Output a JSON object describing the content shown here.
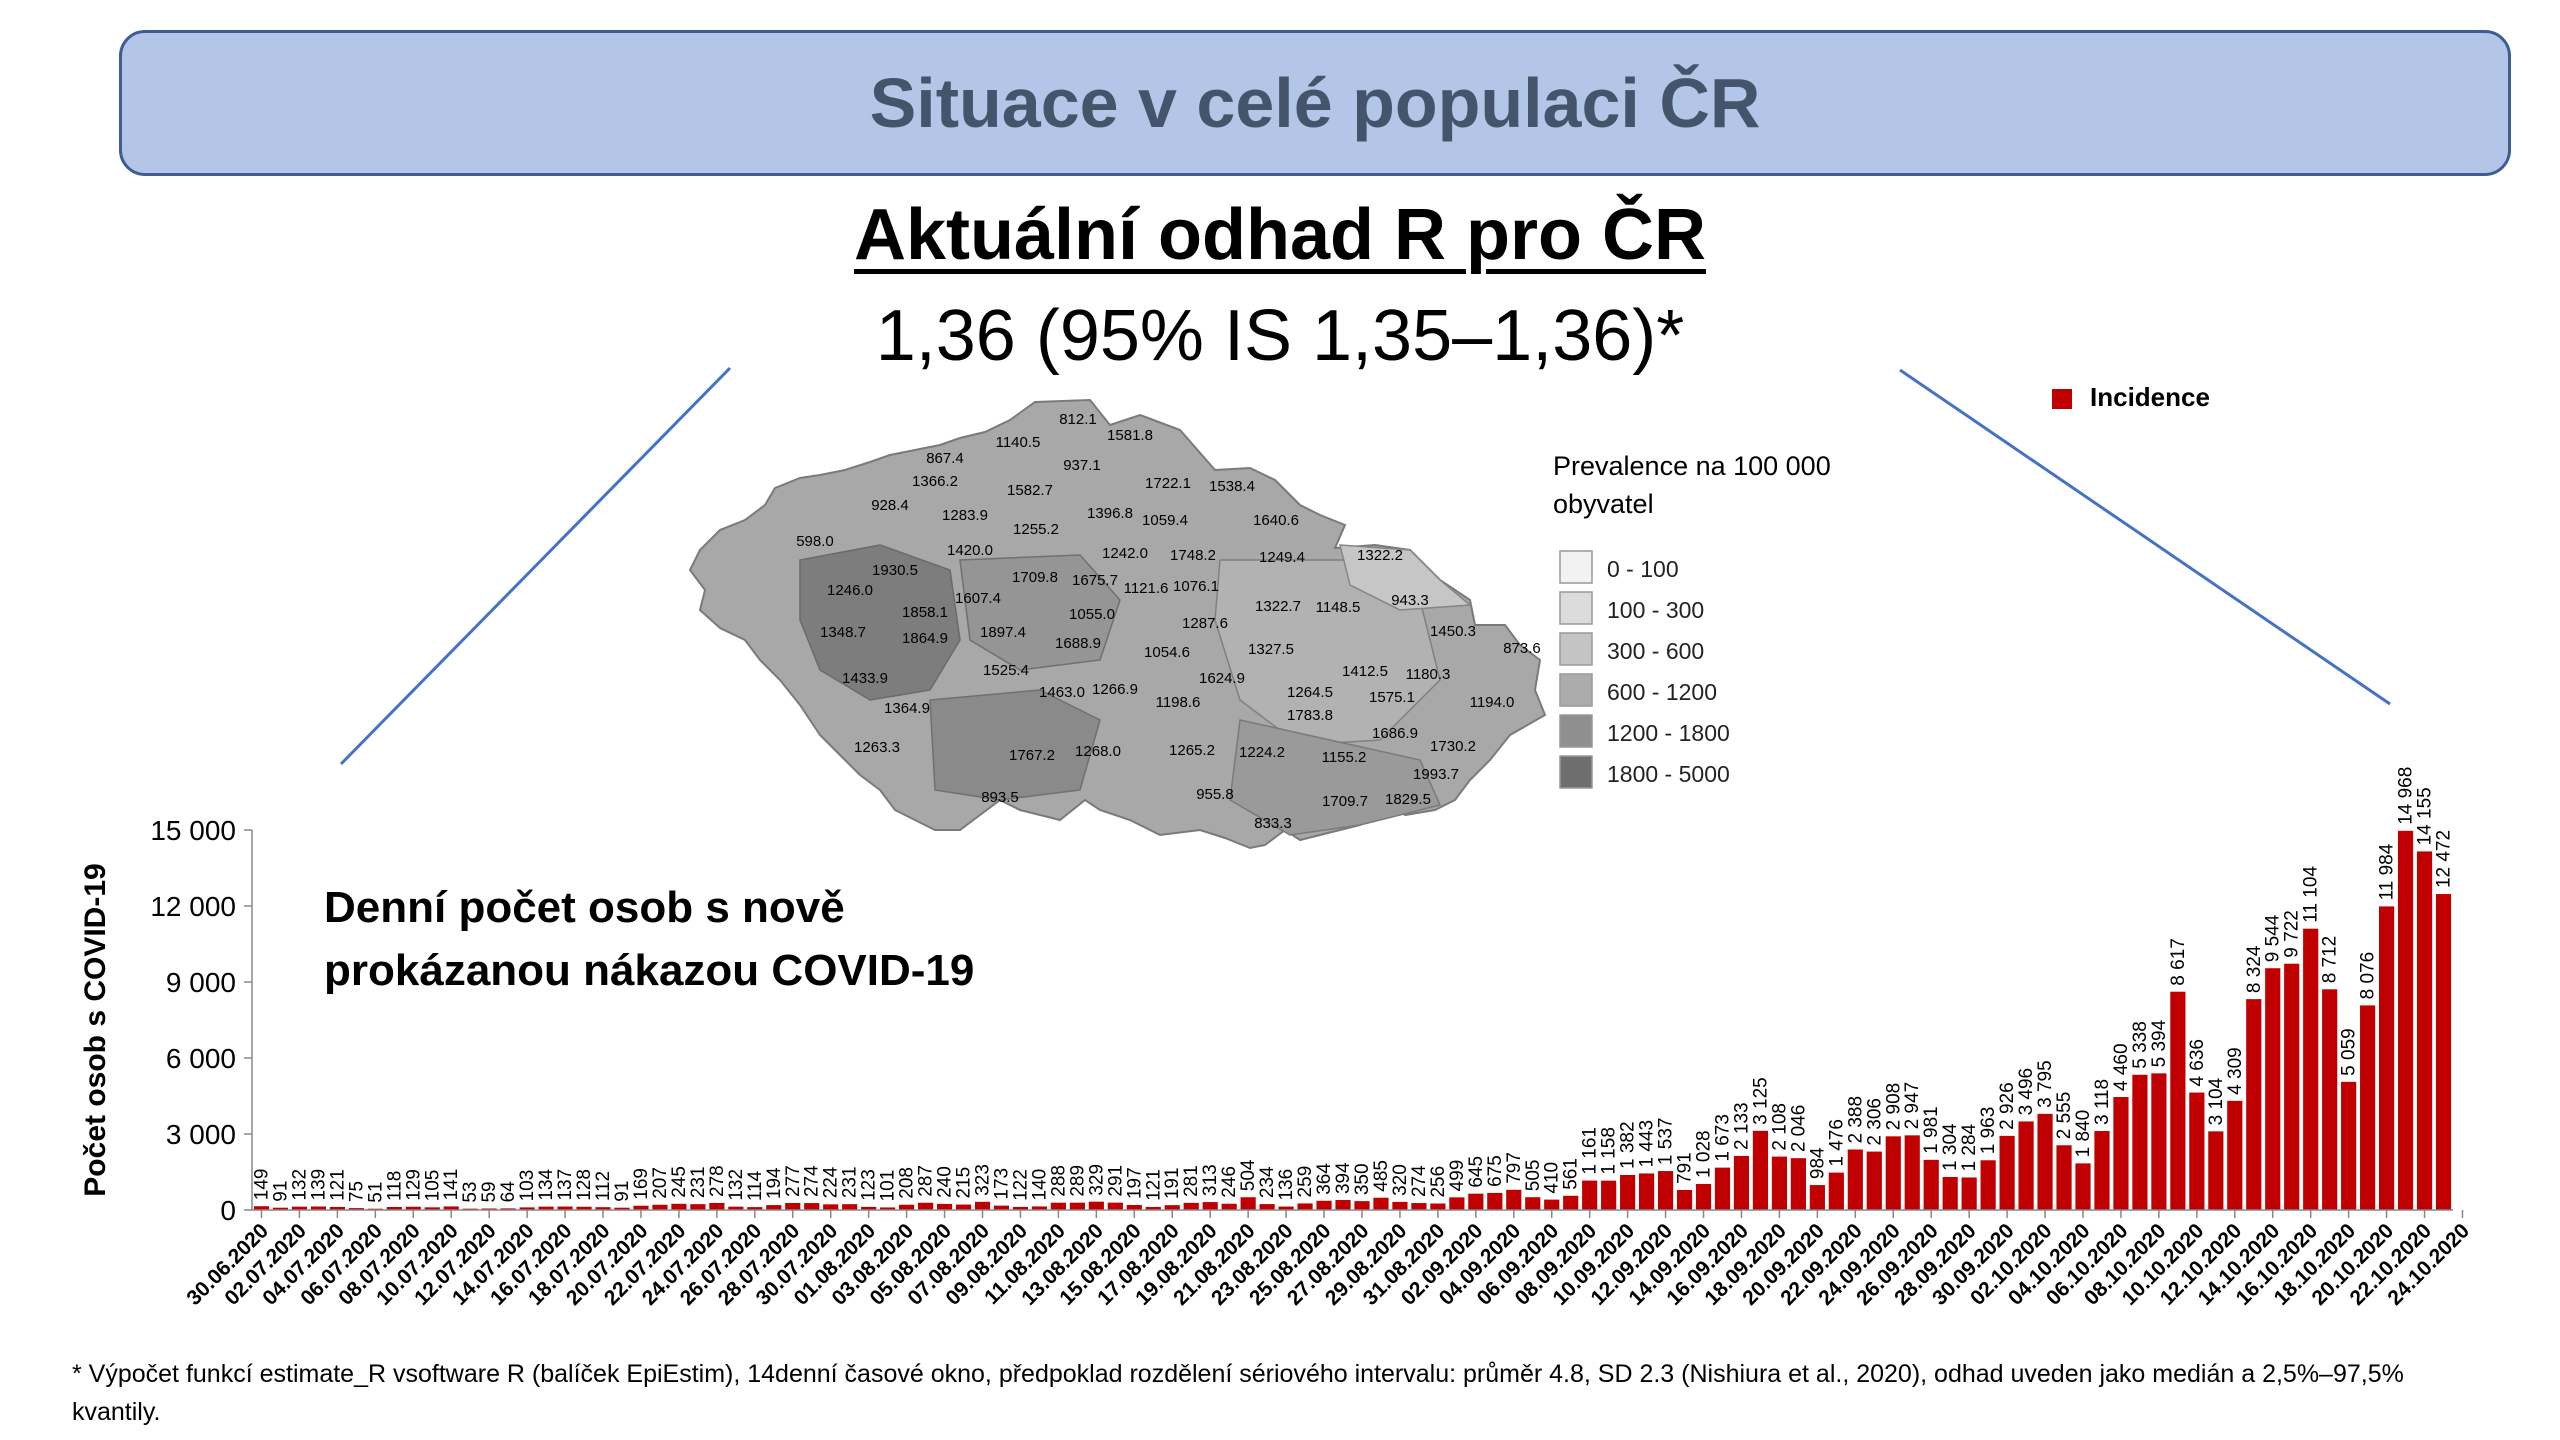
{
  "header": {
    "title": "Situace v celé populaci ČR"
  },
  "estimate": {
    "title": "Aktuální odhad R pro ČR",
    "value": "1,36 (95% IS 1,35–1,36)*"
  },
  "footnote": "* Výpočet funkcí estimate_R vsoftware R (balíček EpiEstim), 14denní časové okno, předpoklad rozdělení sériového intervalu: průměr 4.8, SD 2.3 (Nishiura et al., 2020), odhad uveden jako medián a 2,5%–97,5% kvantily.",
  "map": {
    "legend_title": [
      "Prevalence na 100 000",
      "obyvatel"
    ],
    "legend": [
      {
        "label": "0 - 100",
        "color": "#f2f2f2"
      },
      {
        "label": "100 - 300",
        "color": "#dcdcdc"
      },
      {
        "label": "300 - 600",
        "color": "#c4c4c4"
      },
      {
        "label": "600 - 1200",
        "color": "#acacac"
      },
      {
        "label": "1200 - 1800",
        "color": "#8f8f8f"
      },
      {
        "label": "1800 - 5000",
        "color": "#6e6e6e"
      }
    ],
    "district_values": [
      "812.1",
      "1581.8",
      "1140.5",
      "867.4",
      "937.1",
      "1722.1",
      "1538.4",
      "1366.2",
      "1582.7",
      "928.4",
      "1283.9",
      "1396.8",
      "1059.4",
      "1640.6",
      "1255.2",
      "598.0",
      "1420.0",
      "1242.0",
      "1748.2",
      "1249.4",
      "1322.2",
      "1930.5",
      "1709.8",
      "1675.7",
      "1121.6",
      "1076.1",
      "1246.0",
      "1607.4",
      "1858.1",
      "1055.0",
      "1322.7",
      "1148.5",
      "943.3",
      "1348.7",
      "1864.9",
      "1897.4",
      "1287.6",
      "1450.3",
      "873.6",
      "1688.9",
      "1054.6",
      "1327.5",
      "1433.9",
      "1525.4",
      "1624.9",
      "1412.5",
      "1180.3",
      "1463.0",
      "1266.9",
      "1264.5",
      "1575.1",
      "1194.0",
      "1198.6",
      "1783.8",
      "1364.9",
      "1686.9",
      "1263.3",
      "1767.2",
      "1268.0",
      "1265.2",
      "1224.2",
      "1155.2",
      "1730.2",
      "1993.7",
      "893.5",
      "955.8",
      "1709.7",
      "1829.5",
      "833.3"
    ]
  },
  "chart_data": {
    "type": "bar",
    "title": "Denní počet osob s nově prokázanou nákazou COVID-19",
    "ylabel": "Počet osob s COVID-19",
    "xlabel": "",
    "ylim": [
      0,
      15000
    ],
    "yticks": [
      "0",
      "3 000",
      "6 000",
      "9 000",
      "12 000",
      "15 000"
    ],
    "ytick_values": [
      0,
      3000,
      6000,
      9000,
      12000,
      15000
    ],
    "legend": {
      "label": "Incidence",
      "position": "top-right"
    },
    "color": "#c00000",
    "series": [
      {
        "name": "Incidence",
        "values": [
          149,
          91,
          132,
          139,
          121,
          75,
          51,
          118,
          129,
          105,
          141,
          53,
          59,
          64,
          103,
          134,
          137,
          128,
          112,
          91,
          169,
          207,
          245,
          231,
          278,
          132,
          114,
          194,
          277,
          274,
          224,
          231,
          123,
          101,
          208,
          287,
          240,
          215,
          323,
          173,
          122,
          140,
          288,
          289,
          329,
          291,
          197,
          121,
          191,
          281,
          313,
          246,
          504,
          234,
          136,
          259,
          364,
          394,
          350,
          485,
          320,
          274,
          256,
          499,
          645,
          675,
          797,
          505,
          410,
          561,
          1161,
          1158,
          1382,
          1443,
          1537,
          791,
          1028,
          1673,
          2133,
          3125,
          2108,
          2046,
          984,
          1476,
          2388,
          2306,
          2908,
          2947,
          1981,
          1304,
          1284,
          1963,
          2926,
          3496,
          3795,
          2555,
          1840,
          3118,
          4460,
          5338,
          5394,
          8617,
          4636,
          3104,
          4309,
          8324,
          9544,
          9722,
          11104,
          8712,
          5059,
          8076,
          11984,
          14968,
          14155,
          12472
        ],
        "labels": [
          "149",
          "91",
          "132",
          "139",
          "121",
          "75",
          "51",
          "118",
          "129",
          "105",
          "141",
          "53",
          "59",
          "64",
          "103",
          "134",
          "137",
          "128",
          "112",
          "91",
          "169",
          "207",
          "245",
          "231",
          "278",
          "132",
          "114",
          "194",
          "277",
          "274",
          "224",
          "231",
          "123",
          "101",
          "208",
          "287",
          "240",
          "215",
          "323",
          "173",
          "122",
          "140",
          "288",
          "289",
          "329",
          "291",
          "197",
          "121",
          "191",
          "281",
          "313",
          "246",
          "504",
          "234",
          "136",
          "259",
          "364",
          "394",
          "350",
          "485",
          "320",
          "274",
          "256",
          "499",
          "645",
          "675",
          "797",
          "505",
          "410",
          "561",
          "1 161",
          "1 158",
          "1 382",
          "1 443",
          "1 537",
          "791",
          "1 028",
          "1 673",
          "2 133",
          "3 125",
          "2 108",
          "2 046",
          "984",
          "1 476",
          "2 388",
          "2 306",
          "2 908",
          "2 947",
          "1 981",
          "1 304",
          "1 284",
          "1 963",
          "2 926",
          "3 496",
          "3 795",
          "2 555",
          "1 840",
          "3 118",
          "4 460",
          "5 338",
          "5 394",
          "8 617",
          "4 636",
          "3 104",
          "4 309",
          "8 324",
          "9 544",
          "9 722",
          "11 104",
          "8 712",
          "5 059",
          "8 076",
          "11 984",
          "14 968",
          "14 155",
          "12 472"
        ]
      }
    ],
    "x_tick_labels": [
      "30.06.2020",
      "02.07.2020",
      "04.07.2020",
      "06.07.2020",
      "08.07.2020",
      "10.07.2020",
      "12.07.2020",
      "14.07.2020",
      "16.07.2020",
      "18.07.2020",
      "20.07.2020",
      "22.07.2020",
      "24.07.2020",
      "26.07.2020",
      "28.07.2020",
      "30.07.2020",
      "01.08.2020",
      "03.08.2020",
      "05.08.2020",
      "07.08.2020",
      "09.08.2020",
      "11.08.2020",
      "13.08.2020",
      "15.08.2020",
      "17.08.2020",
      "19.08.2020",
      "21.08.2020",
      "23.08.2020",
      "25.08.2020",
      "27.08.2020",
      "29.08.2020",
      "31.08.2020",
      "02.09.2020",
      "04.09.2020",
      "06.09.2020",
      "08.09.2020",
      "10.09.2020",
      "12.09.2020",
      "14.09.2020",
      "16.09.2020",
      "18.09.2020",
      "20.09.2020",
      "22.09.2020",
      "24.09.2020",
      "26.09.2020",
      "28.09.2020",
      "30.09.2020",
      "02.10.2020",
      "04.10.2020",
      "06.10.2020",
      "08.10.2020",
      "10.10.2020",
      "12.10.2020",
      "14.10.2020",
      "16.10.2020",
      "18.10.2020",
      "20.10.2020",
      "22.10.2020",
      "24.10.2020"
    ]
  }
}
